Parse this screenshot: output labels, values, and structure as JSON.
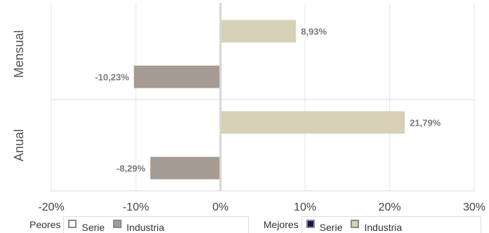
{
  "chart_data": {
    "type": "bar",
    "orientation": "horizontal",
    "categories": [
      "Mensual",
      "Anual"
    ],
    "series": [
      {
        "name": "Industria",
        "group": "Mejores",
        "values": [
          8.93,
          21.79
        ],
        "labels": [
          "8,93%",
          "21,79%"
        ],
        "color": "#d8d0b6"
      },
      {
        "name": "Industria",
        "group": "Peores",
        "values": [
          -10.23,
          -8.29
        ],
        "labels": [
          "-10,23%",
          "-8,29%"
        ],
        "color": "#a69b92"
      }
    ],
    "xlim": [
      -20,
      30
    ],
    "xticks": [
      -20,
      -10,
      0,
      10,
      20,
      30
    ],
    "xtick_labels": [
      "-20%",
      "-10%",
      "0%",
      "10%",
      "20%",
      "30%"
    ],
    "grid": true,
    "title": "",
    "xlabel": "",
    "ylabel": ""
  },
  "legend": {
    "peores": {
      "title": "Peores",
      "items": [
        {
          "label": "Serie",
          "fill": "#ffffff",
          "border": "#888888"
        },
        {
          "label": "Industria",
          "fill": "#a69b92",
          "border": "#888888"
        }
      ]
    },
    "mejores": {
      "title": "Mejores",
      "items": [
        {
          "label": "Serie",
          "fill": "#0d1a5c",
          "border": "#888888"
        },
        {
          "label": "Industria",
          "fill": "#d8d0b6",
          "border": "#888888"
        }
      ]
    }
  }
}
